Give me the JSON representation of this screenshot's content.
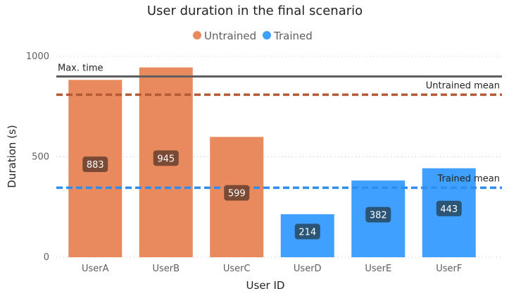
{
  "chart_data": {
    "type": "bar",
    "title": "User duration in the final scenario",
    "xlabel": "User ID",
    "ylabel": "Duration (s)",
    "ylim": [
      0,
      1000
    ],
    "yticks": [
      "0",
      "500",
      "1000"
    ],
    "grid": true,
    "legend_position": "top-center",
    "legend": [
      {
        "name": "Untrained",
        "color": "#e98a5e"
      },
      {
        "name": "Trained",
        "color": "#3fa0ff"
      }
    ],
    "categories": [
      "UserA",
      "UserB",
      "UserC",
      "UserD",
      "UserE",
      "UserF"
    ],
    "values": [
      883,
      945,
      599,
      214,
      382,
      443
    ],
    "data_labels": [
      "883",
      "945",
      "599",
      "214",
      "382",
      "443"
    ],
    "groups": [
      "Untrained",
      "Untrained",
      "Untrained",
      "Trained",
      "Trained",
      "Trained"
    ],
    "reference_lines": [
      {
        "label": "Max. time",
        "value": 900,
        "style": "solid",
        "color": "#605e5c"
      },
      {
        "label": "Untrained mean",
        "value": 809,
        "style": "dashed",
        "color": "#b45b34"
      },
      {
        "label": "Trained mean",
        "value": 346,
        "style": "dashed",
        "color": "#2f8cf0"
      }
    ],
    "colors": {
      "untrained_bar": "#e98a5e",
      "trained_bar": "#3fa0ff",
      "untrained_label_bg": "#7a4a34",
      "trained_label_bg": "#2a5577"
    }
  }
}
